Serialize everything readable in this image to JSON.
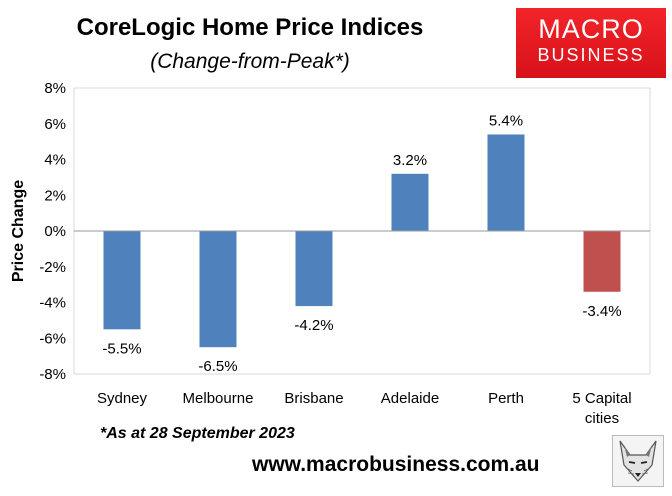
{
  "header": {
    "title": "CoreLogic Home Price Indices",
    "subtitle": "(Change-from-Peak*)"
  },
  "logo": {
    "line1": "MACRO",
    "line2": "BUSINESS"
  },
  "footer": {
    "note": "*As at 28 September 2023",
    "website": "www.macrobusiness.com.au"
  },
  "colors": {
    "primary_bar": "#4f81bd",
    "aggregate_bar": "#c0504d",
    "logo_red": "#e41b22"
  },
  "chart_data": {
    "type": "bar",
    "categories": [
      "Sydney",
      "Melbourne",
      "Brisbane",
      "Adelaide",
      "Perth",
      "5 Capital cities"
    ],
    "values": [
      -5.5,
      -6.5,
      -4.2,
      3.2,
      5.4,
      -3.4
    ],
    "data_labels": [
      "-5.5%",
      "-6.5%",
      "-4.2%",
      "3.2%",
      "5.4%",
      "-3.4%"
    ],
    "ylabel": "Price Change",
    "ylim": [
      -8,
      8
    ],
    "yticks": [
      8,
      6,
      4,
      2,
      0,
      -2,
      -4,
      -6,
      -8
    ],
    "ytick_labels": [
      "8%",
      "6%",
      "4%",
      "2%",
      "0%",
      "-2%",
      "-4%",
      "-6%",
      "-8%"
    ],
    "legend": "none",
    "grid": false
  }
}
